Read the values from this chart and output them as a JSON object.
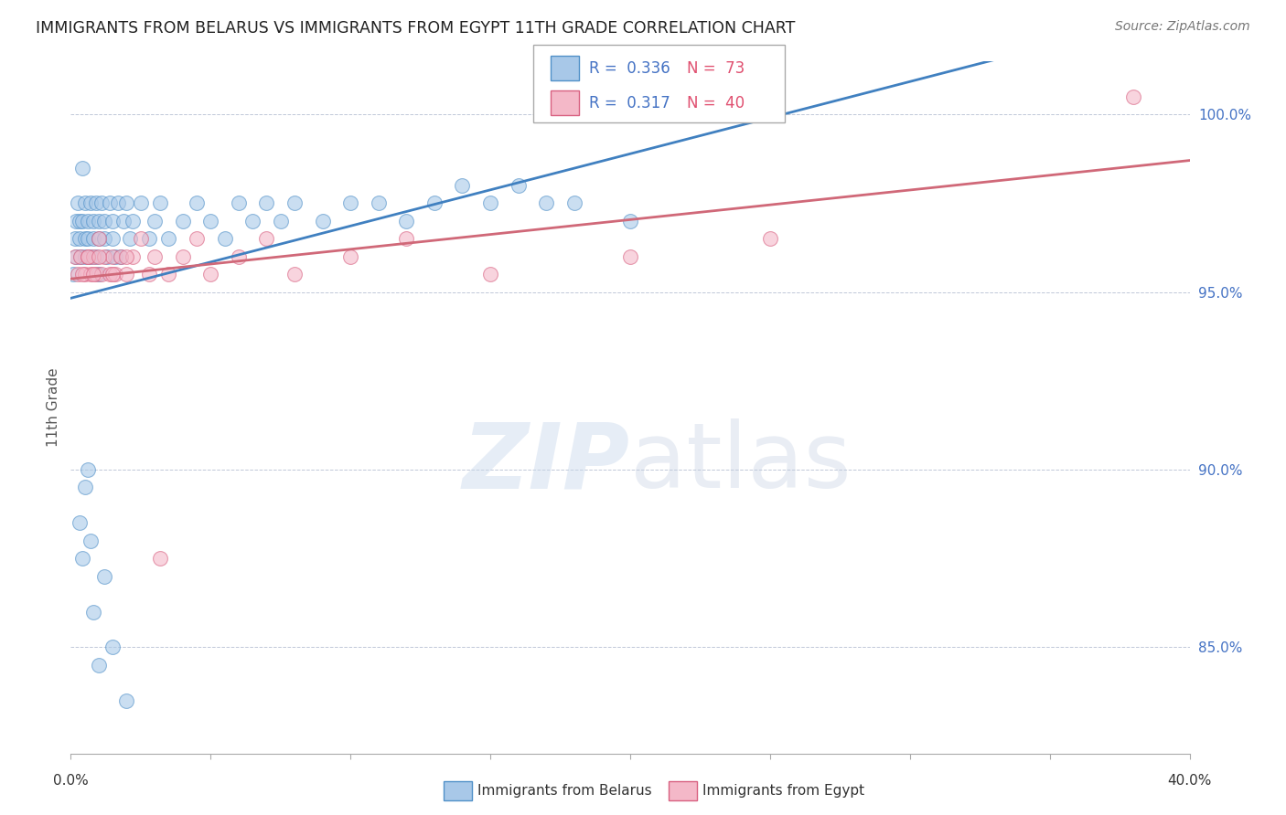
{
  "title": "IMMIGRANTS FROM BELARUS VS IMMIGRANTS FROM EGYPT 11TH GRADE CORRELATION CHART",
  "source": "Source: ZipAtlas.com",
  "ylabel": "11th Grade",
  "r_belarus": 0.336,
  "n_belarus": 73,
  "r_egypt": 0.317,
  "n_egypt": 40,
  "xlim": [
    0.0,
    40.0
  ],
  "ylim": [
    82.0,
    101.5
  ],
  "yticks": [
    85.0,
    90.0,
    95.0,
    100.0
  ],
  "color_belarus": "#a8c8e8",
  "color_egypt": "#f4b8c8",
  "edge_belarus": "#5090c8",
  "edge_egypt": "#d86080",
  "trendline_belarus": "#4080c0",
  "trendline_egypt": "#d06878",
  "belarus_x": [
    0.1,
    0.15,
    0.2,
    0.2,
    0.25,
    0.3,
    0.3,
    0.35,
    0.4,
    0.4,
    0.5,
    0.5,
    0.5,
    0.6,
    0.6,
    0.7,
    0.7,
    0.8,
    0.8,
    0.9,
    0.9,
    1.0,
    1.0,
    1.0,
    1.1,
    1.2,
    1.2,
    1.3,
    1.4,
    1.5,
    1.5,
    1.6,
    1.7,
    1.8,
    1.9,
    2.0,
    2.1,
    2.2,
    2.5,
    2.8,
    3.0,
    3.2,
    3.5,
    4.0,
    4.5,
    5.0,
    5.5,
    6.0,
    6.5,
    7.0,
    7.5,
    8.0,
    9.0,
    10.0,
    11.0,
    12.0,
    13.0,
    14.0,
    15.0,
    16.0,
    17.0,
    18.0,
    20.0,
    0.3,
    0.4,
    0.5,
    0.6,
    0.7,
    0.8,
    1.0,
    1.2,
    1.5,
    2.0
  ],
  "belarus_y": [
    95.5,
    96.5,
    97.0,
    96.0,
    97.5,
    96.5,
    97.0,
    96.0,
    98.5,
    97.0,
    96.5,
    97.5,
    96.0,
    97.0,
    96.5,
    97.5,
    96.0,
    97.0,
    96.5,
    97.5,
    96.0,
    97.0,
    96.5,
    95.5,
    97.5,
    96.5,
    97.0,
    96.0,
    97.5,
    96.5,
    97.0,
    96.0,
    97.5,
    96.0,
    97.0,
    97.5,
    96.5,
    97.0,
    97.5,
    96.5,
    97.0,
    97.5,
    96.5,
    97.0,
    97.5,
    97.0,
    96.5,
    97.5,
    97.0,
    97.5,
    97.0,
    97.5,
    97.0,
    97.5,
    97.5,
    97.0,
    97.5,
    98.0,
    97.5,
    98.0,
    97.5,
    97.5,
    97.0,
    88.5,
    87.5,
    89.5,
    90.0,
    88.0,
    86.0,
    84.5,
    87.0,
    85.0,
    83.5
  ],
  "egypt_x": [
    0.15,
    0.25,
    0.35,
    0.5,
    0.6,
    0.7,
    0.8,
    0.9,
    1.0,
    1.1,
    1.2,
    1.4,
    1.5,
    1.6,
    1.8,
    2.0,
    2.2,
    2.5,
    2.8,
    3.0,
    3.5,
    4.0,
    4.5,
    5.0,
    6.0,
    7.0,
    8.0,
    10.0,
    12.0,
    15.0,
    20.0,
    25.0,
    38.0,
    0.4,
    0.6,
    0.8,
    1.0,
    1.5,
    2.0,
    3.2
  ],
  "egypt_y": [
    96.0,
    95.5,
    96.0,
    95.5,
    96.0,
    95.5,
    96.0,
    95.5,
    96.5,
    95.5,
    96.0,
    95.5,
    96.0,
    95.5,
    96.0,
    95.5,
    96.0,
    96.5,
    95.5,
    96.0,
    95.5,
    96.0,
    96.5,
    95.5,
    96.0,
    96.5,
    95.5,
    96.0,
    96.5,
    95.5,
    96.0,
    96.5,
    100.5,
    95.5,
    96.0,
    95.5,
    96.0,
    95.5,
    96.0,
    87.5
  ]
}
